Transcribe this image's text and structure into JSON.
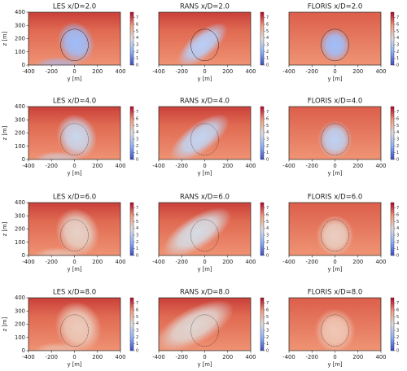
{
  "chart_data": [
    {
      "type": "heatmap",
      "title": "LES x/D=2.0",
      "xlabel": "y [m]",
      "ylabel": "z [m]",
      "xlim": [
        -400,
        400
      ],
      "ylim": [
        0,
        400
      ],
      "xticks": [
        -400,
        -200,
        0,
        200,
        400
      ],
      "yticks": [
        0,
        100,
        200,
        300,
        400
      ],
      "clim": [
        0,
        7.8
      ],
      "cticks": [
        0,
        1,
        2,
        3,
        4,
        5,
        6,
        7
      ]
    },
    {
      "type": "heatmap",
      "title": "RANS x/D=2.0",
      "xlabel": "y [m]",
      "xlim": [
        -400,
        400
      ],
      "ylim": [
        0,
        400
      ],
      "xticks": [
        -400,
        -200,
        0,
        200,
        400
      ],
      "clim": [
        0,
        7.8
      ],
      "cticks": [
        0,
        1,
        2,
        3,
        4,
        5,
        6,
        7
      ]
    },
    {
      "type": "heatmap",
      "title": "FLORIS x/D=2.0",
      "xlabel": "y [m]",
      "xlim": [
        -400,
        400
      ],
      "ylim": [
        0,
        400
      ],
      "xticks": [
        -400,
        -200,
        0,
        200,
        400
      ],
      "clim": [
        0,
        7.8
      ],
      "cticks": [
        0,
        1,
        2,
        3,
        4,
        5,
        6,
        7
      ]
    },
    {
      "type": "heatmap",
      "title": "LES x/D=4.0",
      "xlabel": "y [m]",
      "ylabel": "z [m]",
      "xlim": [
        -400,
        400
      ],
      "ylim": [
        0,
        400
      ],
      "xticks": [
        -400,
        -200,
        0,
        200,
        400
      ],
      "yticks": [
        0,
        100,
        200,
        300,
        400
      ],
      "clim": [
        0,
        7.8
      ],
      "cticks": [
        0,
        1,
        2,
        3,
        4,
        5,
        6,
        7
      ]
    },
    {
      "type": "heatmap",
      "title": "RANS x/D=4.0",
      "xlabel": "y [m]",
      "xlim": [
        -400,
        400
      ],
      "ylim": [
        0,
        400
      ],
      "xticks": [
        -400,
        -200,
        0,
        200,
        400
      ],
      "clim": [
        0,
        7.8
      ],
      "cticks": [
        0,
        1,
        2,
        3,
        4,
        5,
        6,
        7
      ]
    },
    {
      "type": "heatmap",
      "title": "FLORIS x/D=4.0",
      "xlabel": "y [m]",
      "xlim": [
        -400,
        400
      ],
      "ylim": [
        0,
        400
      ],
      "xticks": [
        -400,
        -200,
        0,
        200,
        400
      ],
      "clim": [
        0,
        7.8
      ],
      "cticks": [
        0,
        1,
        2,
        3,
        4,
        5,
        6,
        7
      ]
    },
    {
      "type": "heatmap",
      "title": "LES x/D=6.0",
      "xlabel": "y [m]",
      "ylabel": "z [m]",
      "xlim": [
        -400,
        400
      ],
      "ylim": [
        0,
        400
      ],
      "xticks": [
        -400,
        -200,
        0,
        200,
        400
      ],
      "yticks": [
        0,
        100,
        200,
        300,
        400
      ],
      "clim": [
        0,
        7.8
      ],
      "cticks": [
        0,
        1,
        2,
        3,
        4,
        5,
        6,
        7
      ]
    },
    {
      "type": "heatmap",
      "title": "RANS x/D=6.0",
      "xlabel": "y [m]",
      "xlim": [
        -400,
        400
      ],
      "ylim": [
        0,
        400
      ],
      "xticks": [
        -400,
        -200,
        0,
        200,
        400
      ],
      "clim": [
        0,
        7.8
      ],
      "cticks": [
        0,
        1,
        2,
        3,
        4,
        5,
        6,
        7
      ]
    },
    {
      "type": "heatmap",
      "title": "FLORIS x/D=6.0",
      "xlabel": "y [m]",
      "xlim": [
        -400,
        400
      ],
      "ylim": [
        0,
        400
      ],
      "xticks": [
        -400,
        -200,
        0,
        200,
        400
      ],
      "clim": [
        0,
        7.8
      ],
      "cticks": [
        0,
        1,
        2,
        3,
        4,
        5,
        6,
        7
      ]
    },
    {
      "type": "heatmap",
      "title": "LES x/D=8.0",
      "xlabel": "y [m]",
      "ylabel": "z [m]",
      "xlim": [
        -400,
        400
      ],
      "ylim": [
        0,
        400
      ],
      "xticks": [
        -400,
        -200,
        0,
        200,
        400
      ],
      "yticks": [
        0,
        100,
        200,
        300,
        400
      ],
      "clim": [
        0,
        7.8
      ],
      "cticks": [
        0,
        1,
        2,
        3,
        4,
        5,
        6,
        7
      ]
    },
    {
      "type": "heatmap",
      "title": "RANS x/D=8.0",
      "xlabel": "y [m]",
      "xlim": [
        -400,
        400
      ],
      "ylim": [
        0,
        400
      ],
      "xticks": [
        -400,
        -200,
        0,
        200,
        400
      ],
      "clim": [
        0,
        7.8
      ],
      "cticks": [
        0,
        1,
        2,
        3,
        4,
        5,
        6,
        7
      ]
    },
    {
      "type": "heatmap",
      "title": "FLORIS x/D=8.0",
      "xlabel": "y [m]",
      "xlim": [
        -400,
        400
      ],
      "ylim": [
        0,
        400
      ],
      "xticks": [
        -400,
        -200,
        0,
        200,
        400
      ],
      "clim": [
        0,
        7.8
      ],
      "cticks": [
        0,
        1,
        2,
        3,
        4,
        5,
        6,
        7
      ]
    }
  ]
}
